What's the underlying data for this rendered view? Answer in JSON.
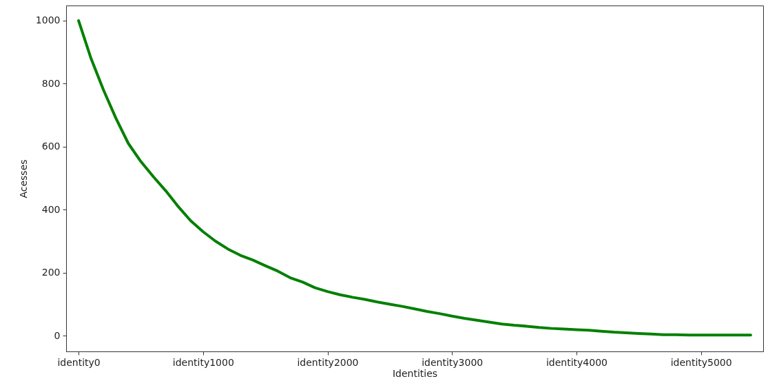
{
  "chart_data": {
    "type": "line",
    "xlabel": "Identities",
    "ylabel": "Acesses",
    "categories": [
      "identity0",
      null,
      null,
      null,
      null,
      null,
      null,
      null,
      null,
      null,
      "identity1000",
      null,
      null,
      null,
      null,
      null,
      null,
      null,
      null,
      null,
      "identity2000",
      null,
      null,
      null,
      null,
      null,
      null,
      null,
      null,
      null,
      "identity3000",
      null,
      null,
      null,
      null,
      null,
      null,
      null,
      null,
      null,
      "identity4000",
      null,
      null,
      null,
      null,
      null,
      null,
      null,
      null,
      null,
      "identity5000",
      null,
      null,
      null,
      null
    ],
    "series": [
      {
        "color": "#008000",
        "values": [
          1000,
          880,
          780,
          690,
          610,
          553,
          505,
          460,
          410,
          365,
          330,
          300,
          275,
          255,
          240,
          222,
          205,
          184,
          170,
          152,
          140,
          130,
          122,
          115,
          107,
          100,
          93,
          85,
          77,
          70,
          62,
          55,
          49,
          43,
          37,
          33,
          30,
          26,
          23,
          21,
          19,
          17,
          14,
          11,
          9,
          7,
          5,
          3,
          3,
          2,
          2,
          2,
          2,
          2,
          2
        ]
      }
    ],
    "ylim": [
      -50,
      1048
    ],
    "yticks": [
      0,
      200,
      400,
      600,
      800,
      1000
    ],
    "line_style": "solid"
  }
}
